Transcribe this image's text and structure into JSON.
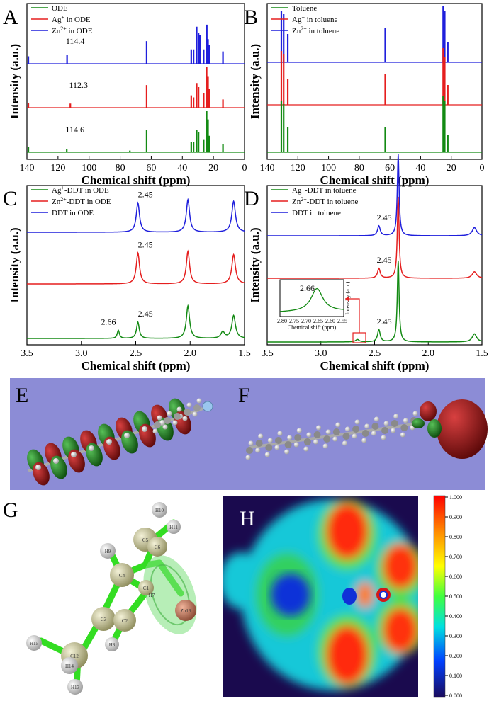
{
  "figure": {
    "panel_letters": [
      "A",
      "B",
      "C",
      "D",
      "E",
      "F",
      "G",
      "H"
    ],
    "colors": {
      "green": "#138a13",
      "red": "#e51e1e",
      "blue": "#1f1fdc",
      "purple_bg": "#8c8cd6",
      "atom_carbon": "#bdbb8f",
      "atom_hydrogen": "#e6e6e6",
      "bond": "#33dd22",
      "zn_atom": "#c87a5e"
    }
  },
  "chart_data": [
    {
      "panel": "A",
      "type": "line",
      "xlabel": "Chemical shift (ppm)",
      "ylabel": "Intensity (a.u.)",
      "xlim": [
        140,
        0
      ],
      "xticks": [
        140,
        120,
        100,
        80,
        60,
        40,
        20,
        0
      ],
      "legend": [
        "ODE",
        "Ag+ in ODE",
        "Zn2+ in ODE"
      ],
      "annotations": [
        {
          "series": "Zn",
          "x": 114.4,
          "label": "114.4"
        },
        {
          "series": "Ag",
          "x": 112.3,
          "label": "112.3"
        },
        {
          "series": "ODE",
          "x": 114.6,
          "label": "114.6"
        }
      ],
      "series": [
        {
          "name": "Zn",
          "color": "#1f1fdc",
          "peaks": [
            [
              139.3,
              0.18
            ],
            [
              114.4,
              0.22
            ],
            [
              63.2,
              0.55
            ],
            [
              34.5,
              0.35
            ],
            [
              33.0,
              0.35
            ],
            [
              31.0,
              0.9
            ],
            [
              29.8,
              0.75
            ],
            [
              29.0,
              0.7
            ],
            [
              26.5,
              0.35
            ],
            [
              24.5,
              0.95
            ],
            [
              23.7,
              0.6
            ],
            [
              22.9,
              0.45
            ],
            [
              14.1,
              0.3
            ]
          ]
        },
        {
          "name": "Ag",
          "color": "#e51e1e",
          "peaks": [
            [
              139.3,
              0.12
            ],
            [
              112.3,
              0.1
            ],
            [
              63.2,
              0.55
            ],
            [
              34.5,
              0.3
            ],
            [
              33.0,
              0.25
            ],
            [
              31.0,
              0.6
            ],
            [
              29.8,
              0.5
            ],
            [
              26.5,
              0.35
            ],
            [
              24.6,
              1.0
            ],
            [
              23.7,
              0.75
            ],
            [
              22.9,
              0.45
            ],
            [
              14.1,
              0.2
            ]
          ]
        },
        {
          "name": "ODE",
          "color": "#138a13",
          "peaks": [
            [
              139.3,
              0.12
            ],
            [
              114.6,
              0.08
            ],
            [
              74.0,
              0.04
            ],
            [
              63.2,
              0.55
            ],
            [
              34.5,
              0.25
            ],
            [
              33.0,
              0.25
            ],
            [
              31.0,
              0.55
            ],
            [
              29.8,
              0.5
            ],
            [
              26.5,
              0.3
            ],
            [
              24.6,
              1.0
            ],
            [
              23.7,
              0.8
            ],
            [
              22.9,
              0.4
            ],
            [
              14.1,
              0.2
            ]
          ]
        }
      ]
    },
    {
      "panel": "B",
      "type": "line",
      "xlabel": "Chemical shift (ppm)",
      "ylabel": "Intensity (a.u.)",
      "xlim": [
        140,
        0
      ],
      "xticks": [
        140,
        120,
        100,
        80,
        60,
        40,
        20,
        0
      ],
      "legend": [
        "Toluene",
        "Ag+ in toluene",
        "Zn2+ in toluene"
      ],
      "series": [
        {
          "name": "Zn",
          "color": "#1f1fdc",
          "peaks": [
            [
              131.0,
              0.9
            ],
            [
              129.5,
              0.85
            ],
            [
              126.8,
              0.5
            ],
            [
              63.3,
              0.6
            ],
            [
              25.5,
              1.0
            ],
            [
              24.5,
              0.9
            ],
            [
              22.5,
              0.35
            ]
          ]
        },
        {
          "name": "Ag",
          "color": "#e51e1e",
          "peaks": [
            [
              131.0,
              0.95
            ],
            [
              129.5,
              0.9
            ],
            [
              126.8,
              0.45
            ],
            [
              63.3,
              0.55
            ],
            [
              25.5,
              1.0
            ],
            [
              24.5,
              0.85
            ],
            [
              22.5,
              0.35
            ]
          ]
        },
        {
          "name": "Toluene",
          "color": "#138a13",
          "peaks": [
            [
              131.0,
              0.9
            ],
            [
              129.5,
              0.85
            ],
            [
              126.8,
              0.45
            ],
            [
              63.3,
              0.45
            ],
            [
              25.5,
              1.0
            ],
            [
              24.5,
              0.9
            ],
            [
              22.5,
              0.3
            ]
          ]
        }
      ]
    },
    {
      "panel": "C",
      "type": "line",
      "xlabel": "Chemical shift (ppm)",
      "ylabel": "Intensity (a.u.)",
      "xlim": [
        3.5,
        1.5
      ],
      "xticks": [
        3.5,
        3.0,
        2.5,
        2.0,
        1.5
      ],
      "legend": [
        "Ag+-DDT in ODE",
        "Zn2+-DDT in ODE",
        "DDT in ODE"
      ],
      "annotations": [
        {
          "series": "DDT",
          "x": 2.45,
          "label": "2.45"
        },
        {
          "series": "Zn",
          "x": 2.45,
          "label": "2.45"
        },
        {
          "series": "Ag",
          "x": 2.66,
          "label": "2.66"
        },
        {
          "series": "Ag",
          "x": 2.45,
          "label": "2.45"
        }
      ],
      "series": [
        {
          "name": "DDT",
          "color": "#1f1fdc",
          "peaks": [
            [
              2.48,
              0.9,
              0.018
            ],
            [
              2.02,
              1.0,
              0.018
            ],
            [
              1.6,
              0.95,
              0.02
            ],
            [
              1.3,
              0.6,
              0.05
            ]
          ]
        },
        {
          "name": "Zn",
          "color": "#e51e1e",
          "peaks": [
            [
              2.48,
              0.95,
              0.018
            ],
            [
              2.02,
              1.0,
              0.018
            ],
            [
              1.6,
              0.9,
              0.02
            ],
            [
              1.3,
              0.6,
              0.05
            ]
          ]
        },
        {
          "name": "Ag",
          "color": "#138a13",
          "peaks": [
            [
              2.66,
              0.25,
              0.012
            ],
            [
              2.48,
              0.5,
              0.015
            ],
            [
              2.02,
              1.0,
              0.018
            ],
            [
              1.7,
              0.2,
              0.02
            ],
            [
              1.6,
              0.7,
              0.02
            ],
            [
              1.3,
              0.6,
              0.05
            ]
          ]
        }
      ]
    },
    {
      "panel": "D",
      "type": "line",
      "xlabel": "Chemical shift (ppm)",
      "ylabel": "Intensity (a.u.)",
      "xlim": [
        3.5,
        1.5
      ],
      "xticks": [
        3.5,
        3.0,
        2.5,
        2.0,
        1.5
      ],
      "legend": [
        "Ag+-DDT in toluene",
        "Zn2+-DDT in toluene",
        "DDT in toluene"
      ],
      "annotations": [
        {
          "series": "DDT",
          "x": 2.45,
          "label": "2.45"
        },
        {
          "series": "Zn",
          "x": 2.45,
          "label": "2.45"
        },
        {
          "series": "Ag",
          "x": 2.45,
          "label": "2.45"
        }
      ],
      "inset": {
        "xlabel": "Chemical shift (ppm)",
        "ylabel": "Intensity (a.u.)",
        "xlim": [
          2.8,
          2.55
        ],
        "xticks": [
          "2.80",
          "2.75",
          "2.70",
          "2.65",
          "2.60",
          "2.55"
        ],
        "peak_label": "2.66",
        "peak_x": 2.66
      },
      "series": [
        {
          "name": "DDT",
          "color": "#1f1fdc",
          "peaks": [
            [
              2.46,
              0.12,
              0.015
            ],
            [
              2.28,
              1.0,
              0.01
            ],
            [
              1.57,
              0.1,
              0.025
            ]
          ]
        },
        {
          "name": "Zn",
          "color": "#e51e1e",
          "peaks": [
            [
              2.46,
              0.12,
              0.015
            ],
            [
              2.28,
              1.0,
              0.01
            ],
            [
              1.57,
              0.08,
              0.025
            ]
          ]
        },
        {
          "name": "Ag",
          "color": "#138a13",
          "peaks": [
            [
              2.66,
              0.03,
              0.02
            ],
            [
              2.46,
              0.15,
              0.015
            ],
            [
              2.28,
              1.0,
              0.01
            ],
            [
              1.57,
              0.1,
              0.025
            ]
          ]
        }
      ]
    },
    {
      "panel": "H",
      "type": "heatmap",
      "colorbar_ticks": [
        "1.000",
        "0.900",
        "0.800",
        "0.700",
        "0.600",
        "0.500",
        "0.400",
        "0.300",
        "0.200",
        "0.100",
        "0.000"
      ]
    }
  ],
  "molecule_G": {
    "atom_labels": [
      "H10",
      "H11",
      "C5",
      "C6",
      "H9",
      "C4",
      "C1",
      "H7",
      "Zn16",
      "C3",
      "C2",
      "H8",
      "H15",
      "C12",
      "H14",
      "H13"
    ]
  }
}
